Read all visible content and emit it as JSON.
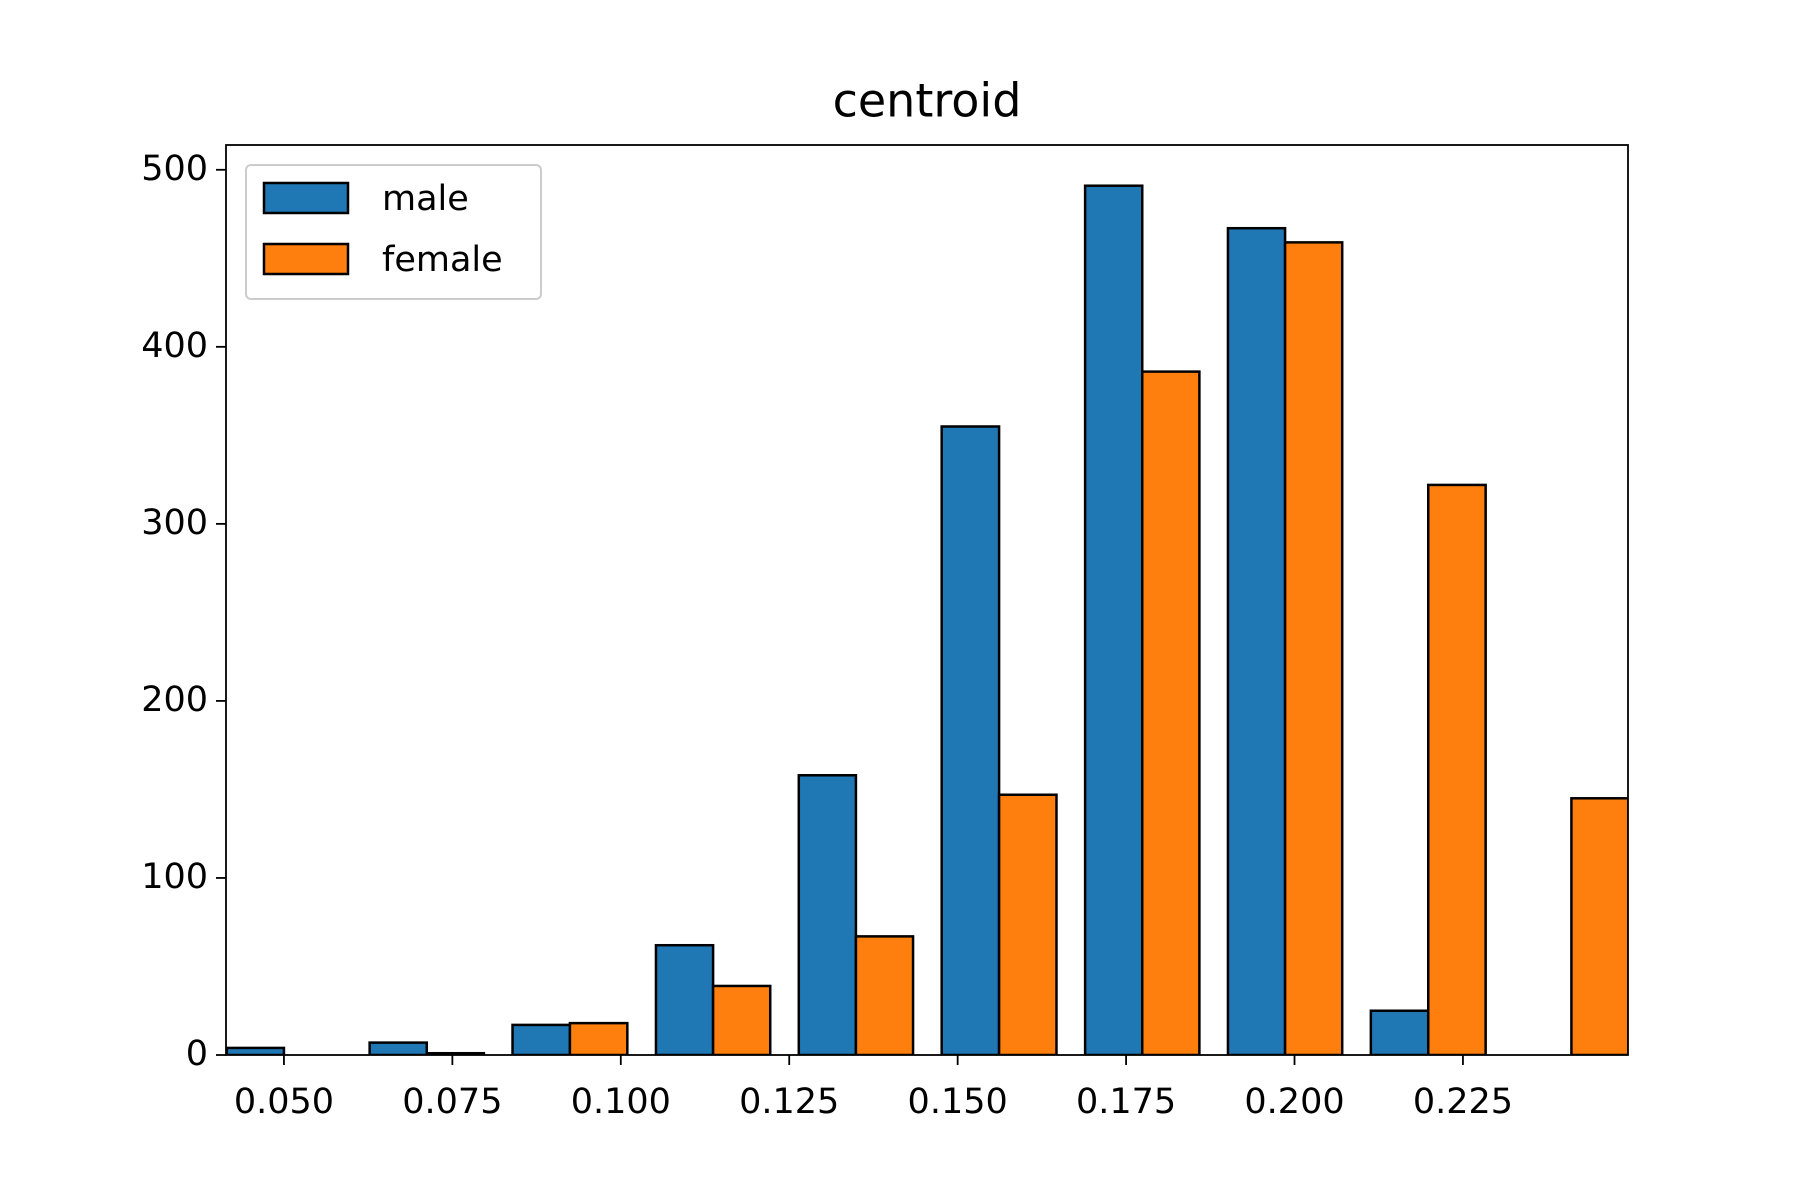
{
  "chart_data": {
    "type": "histogram",
    "title": "centroid",
    "bins": [
      0.0394,
      0.0606,
      0.0818,
      0.1031,
      0.1243,
      0.1455,
      0.1668,
      0.188,
      0.2092,
      0.2305,
      0.2517
    ],
    "series": [
      {
        "name": "male",
        "color": "#1f77b4",
        "values": [
          4,
          7,
          17,
          62,
          158,
          355,
          491,
          467,
          25,
          0
        ]
      },
      {
        "name": "female",
        "color": "#ff7f0e",
        "values": [
          0,
          1,
          18,
          39,
          67,
          147,
          386,
          459,
          322,
          145
        ]
      }
    ],
    "xlim": [
      0.0414,
      0.2495
    ],
    "xticks": [
      {
        "value": 0.05,
        "label": "0.050"
      },
      {
        "value": 0.075,
        "label": "0.075"
      },
      {
        "value": 0.1,
        "label": "0.100"
      },
      {
        "value": 0.125,
        "label": "0.125"
      },
      {
        "value": 0.15,
        "label": "0.150"
      },
      {
        "value": 0.175,
        "label": "0.175"
      },
      {
        "value": 0.2,
        "label": "0.200"
      },
      {
        "value": 0.225,
        "label": "0.225"
      }
    ],
    "ylim": [
      0,
      514
    ],
    "yticks": [
      0,
      100,
      200,
      300,
      400,
      500
    ],
    "legend": "upper left",
    "grid": false
  }
}
